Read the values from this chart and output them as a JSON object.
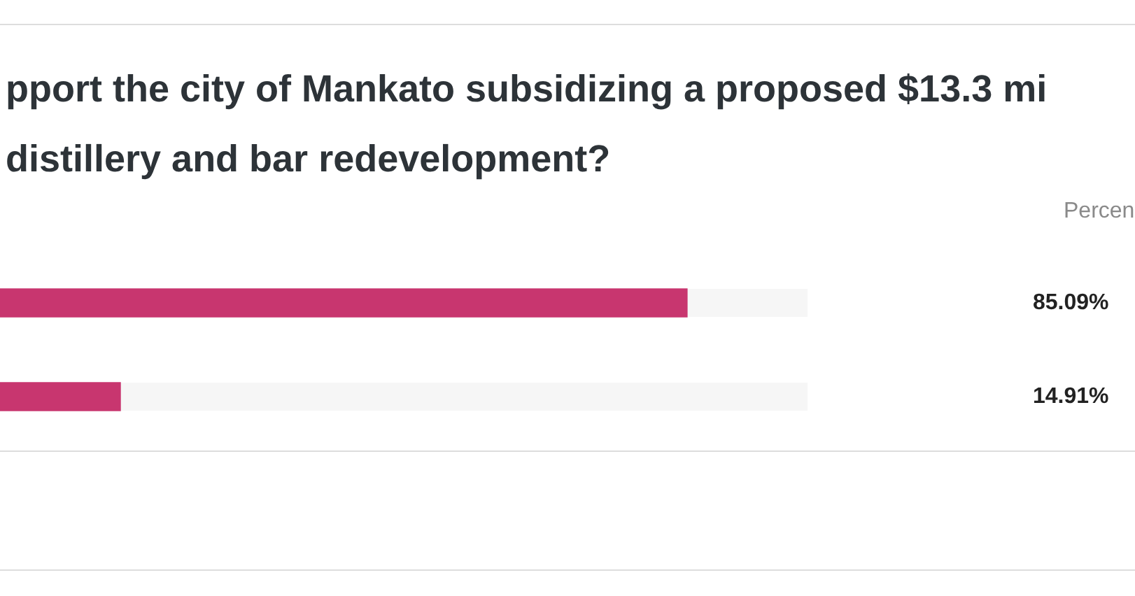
{
  "chart_data": {
    "type": "bar",
    "orientation": "horizontal",
    "title": "pport the city of Mankato subsidizing a proposed $13.3 mi\ndistillery and bar redevelopment?",
    "categories": [
      null,
      null
    ],
    "values": [
      85.09,
      14.91
    ],
    "color": "#c8366f",
    "value_labels": [
      "85.09%",
      "14.91%"
    ],
    "xlim": [
      0,
      100
    ],
    "annotations": [
      "Percen"
    ],
    "tick_labels": false,
    "grid": false,
    "legend": false
  }
}
